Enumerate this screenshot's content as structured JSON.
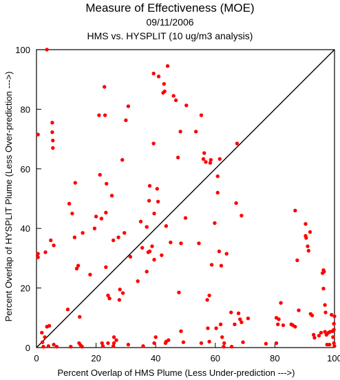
{
  "chart_data": {
    "type": "scatter",
    "title": "Measure of Effectiveness (MOE)",
    "subtitle": "09/11/2006",
    "subtitle2": "HMS vs. HYSPLIT  (10 ug/m3 analysis)",
    "xlabel": "Percent Overlap of HMS Plume (Less Under-prediction --->)",
    "ylabel": "Percent Overlap of HYSPLIT Plume (Less Over-prediction --->)",
    "xlim": [
      0,
      100
    ],
    "ylim": [
      0,
      100
    ],
    "xticks": [
      0,
      20,
      40,
      60,
      80,
      100
    ],
    "yticks": [
      0,
      20,
      40,
      60,
      80,
      100
    ],
    "grid": false,
    "reference_line": "y = x",
    "marker_color": "#ff0000",
    "points": [
      [
        0.5,
        71.5
      ],
      [
        0.5,
        31.5
      ],
      [
        0.5,
        30.3
      ],
      [
        1.8,
        5.0
      ],
      [
        2.0,
        1.8
      ],
      [
        2.3,
        0.3
      ],
      [
        2.8,
        3.5
      ],
      [
        3.0,
        32.0
      ],
      [
        3.5,
        100.0
      ],
      [
        3.5,
        7.0
      ],
      [
        4.0,
        0.5
      ],
      [
        4.3,
        7.3
      ],
      [
        4.8,
        36.0
      ],
      [
        5.3,
        75.5
      ],
      [
        5.3,
        72.3
      ],
      [
        5.5,
        69.5
      ],
      [
        5.5,
        67.0
      ],
      [
        5.8,
        34.3
      ],
      [
        5.8,
        1.0
      ],
      [
        6.8,
        0.3
      ],
      [
        10.5,
        12.8
      ],
      [
        11.0,
        48.3
      ],
      [
        11.5,
        0.3
      ],
      [
        12.0,
        45.0
      ],
      [
        12.8,
        37.0
      ],
      [
        13.0,
        55.3
      ],
      [
        13.5,
        26.5
      ],
      [
        14.0,
        27.5
      ],
      [
        14.3,
        1.5
      ],
      [
        14.5,
        10.3
      ],
      [
        14.8,
        0.8
      ],
      [
        15.3,
        0.3
      ],
      [
        15.5,
        38.5
      ],
      [
        18.0,
        24.5
      ],
      [
        19.5,
        40.0
      ],
      [
        20.0,
        44.0
      ],
      [
        21.0,
        78.0
      ],
      [
        21.3,
        58.0
      ],
      [
        21.8,
        43.3
      ],
      [
        22.0,
        1.5
      ],
      [
        22.3,
        0.5
      ],
      [
        22.8,
        87.5
      ],
      [
        23.0,
        78.0
      ],
      [
        23.3,
        45.3
      ],
      [
        23.3,
        27.0
      ],
      [
        23.5,
        55.0
      ],
      [
        24.0,
        17.5
      ],
      [
        24.0,
        1.5
      ],
      [
        24.5,
        16.5
      ],
      [
        25.3,
        51.0
      ],
      [
        25.8,
        0.5
      ],
      [
        25.8,
        36.0
      ],
      [
        26.0,
        1.5
      ],
      [
        26.0,
        3.5
      ],
      [
        26.8,
        2.5
      ],
      [
        27.5,
        37.0
      ],
      [
        27.8,
        16.0
      ],
      [
        28.0,
        19.5
      ],
      [
        28.8,
        63.0
      ],
      [
        29.0,
        18.3
      ],
      [
        29.5,
        38.5
      ],
      [
        30.0,
        76.3
      ],
      [
        30.8,
        81.0
      ],
      [
        30.8,
        1.0
      ],
      [
        31.5,
        30.5
      ],
      [
        34.0,
        22.3
      ],
      [
        35.0,
        42.3
      ],
      [
        35.5,
        33.5
      ],
      [
        35.8,
        0.5
      ],
      [
        37.0,
        25.5
      ],
      [
        37.0,
        40.5
      ],
      [
        37.5,
        32.0
      ],
      [
        37.8,
        49.3
      ],
      [
        38.0,
        54.3
      ],
      [
        38.0,
        32.3
      ],
      [
        38.8,
        34.0
      ],
      [
        39.3,
        68.5
      ],
      [
        39.3,
        92.0
      ],
      [
        39.5,
        45.0
      ],
      [
        39.5,
        29.5
      ],
      [
        39.5,
        1.5
      ],
      [
        40.0,
        3.5
      ],
      [
        40.5,
        53.3
      ],
      [
        40.8,
        49.0
      ],
      [
        41.0,
        91.0
      ],
      [
        42.0,
        31.0
      ],
      [
        42.5,
        85.5
      ],
      [
        42.8,
        88.5
      ],
      [
        43.0,
        86.0
      ],
      [
        43.3,
        1.5
      ],
      [
        43.5,
        40.8
      ],
      [
        43.5,
        2.0
      ],
      [
        44.0,
        94.5
      ],
      [
        44.3,
        2.5
      ],
      [
        45.0,
        35.3
      ],
      [
        46.0,
        84.5
      ],
      [
        46.8,
        83.0
      ],
      [
        47.5,
        63.8
      ],
      [
        47.8,
        18.5
      ],
      [
        48.3,
        72.5
      ],
      [
        48.5,
        35.0
      ],
      [
        48.5,
        5.5
      ],
      [
        49.3,
        1.8
      ],
      [
        50.0,
        43.5
      ],
      [
        50.3,
        81.3
      ],
      [
        53.5,
        72.5
      ],
      [
        54.5,
        35.0
      ],
      [
        55.3,
        78.0
      ],
      [
        55.3,
        1.5
      ],
      [
        56.0,
        63.3
      ],
      [
        56.3,
        65.3
      ],
      [
        56.8,
        62.3
      ],
      [
        57.3,
        16.0
      ],
      [
        57.5,
        6.5
      ],
      [
        58.0,
        17.5
      ],
      [
        58.0,
        2.0
      ],
      [
        58.3,
        62.0
      ],
      [
        58.5,
        63.0
      ],
      [
        58.8,
        27.8
      ],
      [
        59.8,
        41.8
      ],
      [
        60.3,
        6.5
      ],
      [
        60.8,
        52.0
      ],
      [
        60.8,
        57.5
      ],
      [
        61.3,
        32.3
      ],
      [
        61.5,
        63.3
      ],
      [
        61.8,
        7.8
      ],
      [
        62.0,
        27.5
      ],
      [
        62.3,
        3.5
      ],
      [
        62.8,
        0.3
      ],
      [
        63.0,
        1.5
      ],
      [
        63.8,
        31.5
      ],
      [
        65.3,
        11.8
      ],
      [
        65.5,
        0.3
      ],
      [
        66.5,
        7.8
      ],
      [
        67.0,
        48.5
      ],
      [
        67.3,
        68.5
      ],
      [
        67.8,
        11.5
      ],
      [
        68.3,
        9.5
      ],
      [
        68.8,
        8.5
      ],
      [
        68.8,
        44.3
      ],
      [
        69.3,
        1.8
      ],
      [
        71.0,
        9.8
      ],
      [
        77.0,
        1.3
      ],
      [
        80.5,
        10.0
      ],
      [
        80.5,
        1.5
      ],
      [
        81.0,
        7.8
      ],
      [
        81.3,
        9.5
      ],
      [
        82.0,
        15.0
      ],
      [
        82.8,
        7.5
      ],
      [
        85.5,
        7.8
      ],
      [
        86.0,
        7.5
      ],
      [
        86.8,
        46.0
      ],
      [
        86.8,
        7.0
      ],
      [
        87.5,
        29.3
      ],
      [
        88.0,
        12.5
      ],
      [
        90.3,
        41.5
      ],
      [
        90.3,
        37.5
      ],
      [
        90.5,
        36.8
      ],
      [
        91.0,
        34.0
      ],
      [
        91.3,
        32.5
      ],
      [
        91.8,
        38.8
      ],
      [
        92.0,
        11.3
      ],
      [
        92.5,
        10.8
      ],
      [
        93.0,
        4.3
      ],
      [
        93.3,
        3.3
      ],
      [
        94.8,
        4.0
      ],
      [
        95.5,
        5.0
      ],
      [
        96.0,
        25.0
      ],
      [
        96.3,
        26.0
      ],
      [
        96.3,
        19.8
      ],
      [
        96.5,
        25.5
      ],
      [
        96.8,
        14.3
      ],
      [
        96.8,
        5.3
      ],
      [
        97.0,
        11.8
      ],
      [
        97.3,
        4.3
      ],
      [
        97.5,
        1.0
      ],
      [
        98.0,
        5.0
      ],
      [
        98.3,
        1.0
      ],
      [
        98.5,
        5.3
      ],
      [
        99.0,
        11.0
      ],
      [
        99.3,
        5.5
      ],
      [
        99.5,
        3.5
      ],
      [
        99.8,
        8.0
      ],
      [
        99.8,
        6.0
      ],
      [
        99.8,
        1.5
      ],
      [
        100.0,
        0.5
      ],
      [
        100.0,
        10.5
      ]
    ]
  }
}
